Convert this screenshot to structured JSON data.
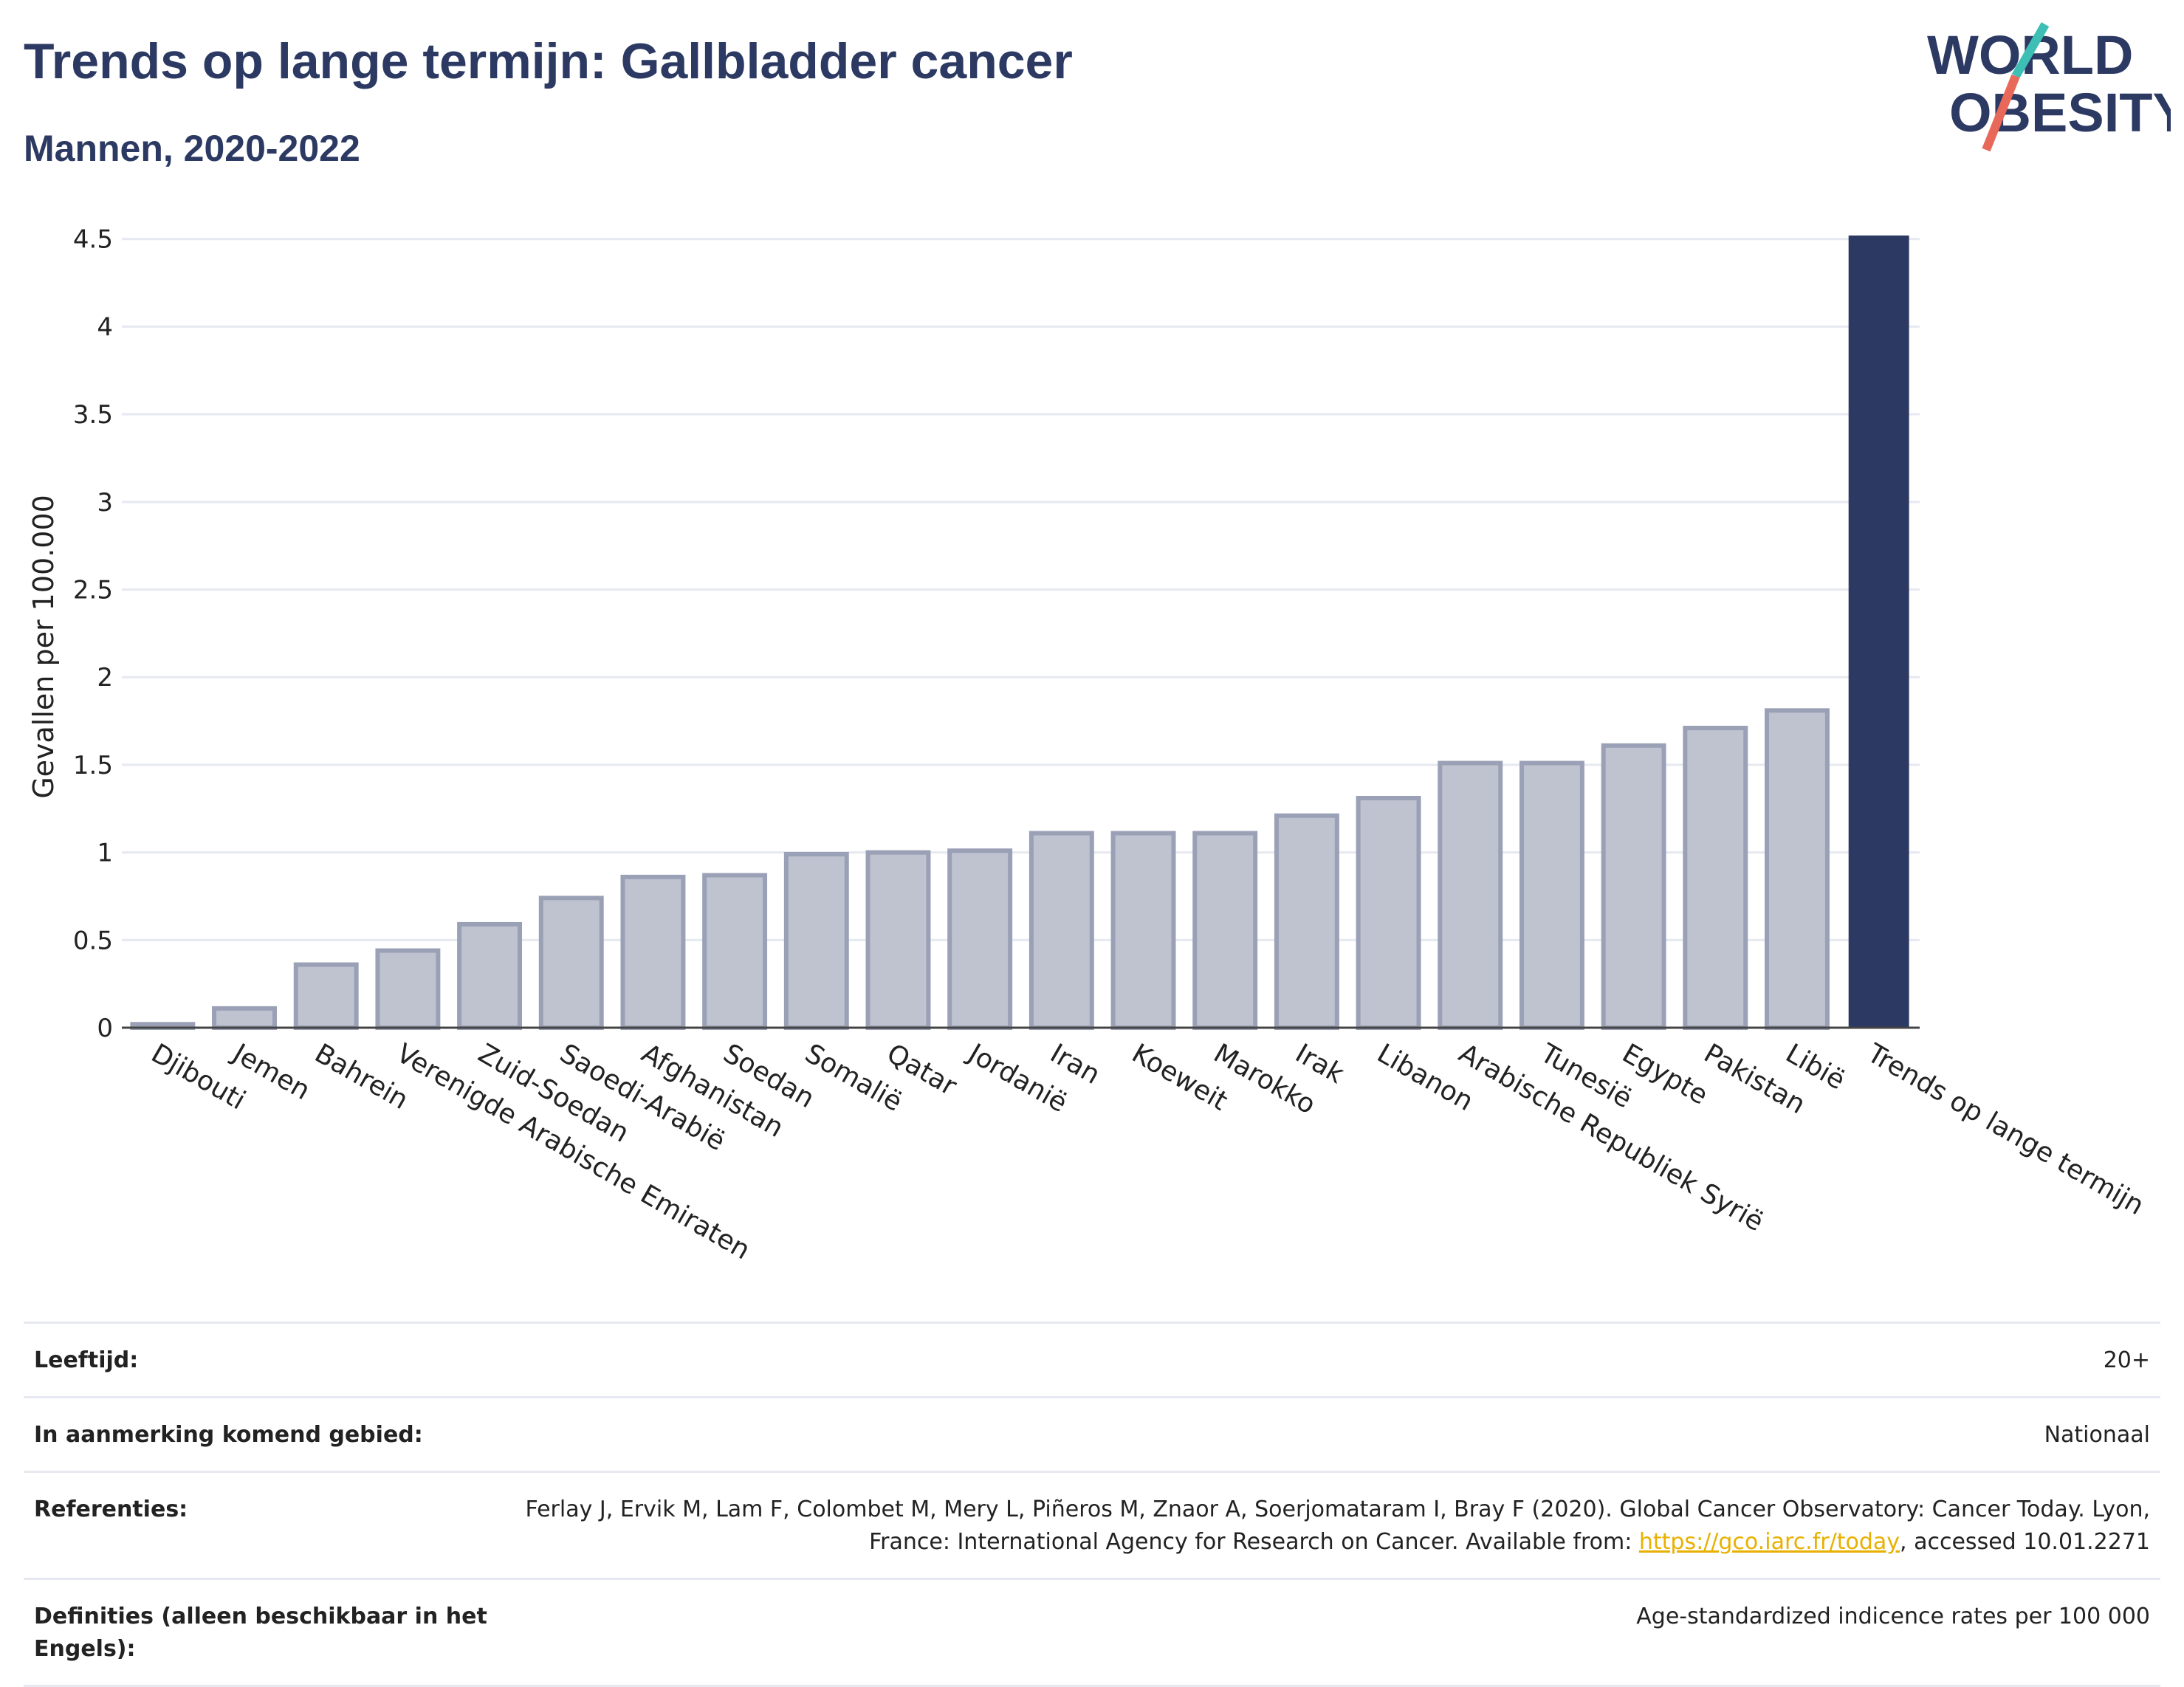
{
  "header": {
    "title": "Trends op lange termijn: Gallbladder cancer",
    "subtitle": "Mannen, 2020-2022"
  },
  "logo": {
    "line1": "WORLD",
    "line2": "OBESITY"
  },
  "chart_data": {
    "type": "bar",
    "categories": [
      "Djibouti",
      "Jemen",
      "Bahrein",
      "Verenigde Arabische Emiraten",
      "Zuid-Soedan",
      "Saoedi-Arabië",
      "Afghanistan",
      "Soedan",
      "Somalië",
      "Qatar",
      "Jordanië",
      "Iran",
      "Koeweit",
      "Marokko",
      "Irak",
      "Libanon",
      "Arabische Republiek Syrië",
      "Tunesië",
      "Egypte",
      "Pakistan",
      "Libië",
      "Trends op lange termijn"
    ],
    "values": [
      0.02,
      0.11,
      0.36,
      0.44,
      0.59,
      0.74,
      0.86,
      0.87,
      0.99,
      1.0,
      1.01,
      1.11,
      1.11,
      1.11,
      1.21,
      1.31,
      1.51,
      1.51,
      1.61,
      1.71,
      1.81,
      4.52
    ],
    "highlight_index": 21,
    "ylabel": "Gevallen per 100.000",
    "xlabel": "",
    "ylim": [
      0,
      4.6
    ],
    "yticks": [
      0,
      0.5,
      1,
      1.5,
      2,
      2.5,
      3,
      3.5,
      4,
      4.5
    ],
    "ytick_labels": [
      "0",
      "0.5",
      "1",
      "1.5",
      "2",
      "2.5",
      "3",
      "3.5",
      "4",
      "4.5"
    ],
    "grid": true,
    "colors": {
      "bar": "#bfc3d0",
      "bar_edge": "#9aa0b5",
      "highlight": "#2c3a63",
      "grid": "#e6e9f0"
    }
  },
  "info": {
    "rows": [
      {
        "key": "Leeftijd:",
        "value": "20+"
      },
      {
        "key": "In aanmerking komend gebied:",
        "value": "Nationaal"
      },
      {
        "key": "Referenties:",
        "value_before": "Ferlay J, Ervik M, Lam F, Colombet M, Mery L, Piñeros M, Znaor A, Soerjomataram I, Bray F (2020). Global Cancer Observatory: Cancer Today. Lyon, France: International Agency for Research on Cancer. Available from: ",
        "link": "https://gco.iarc.fr/today",
        "value_after": ", accessed 10.01.2271"
      },
      {
        "key": "Definities (alleen beschikbaar in het Engels):",
        "value": "Age-standardized indicence rates per 100 000"
      }
    ]
  }
}
